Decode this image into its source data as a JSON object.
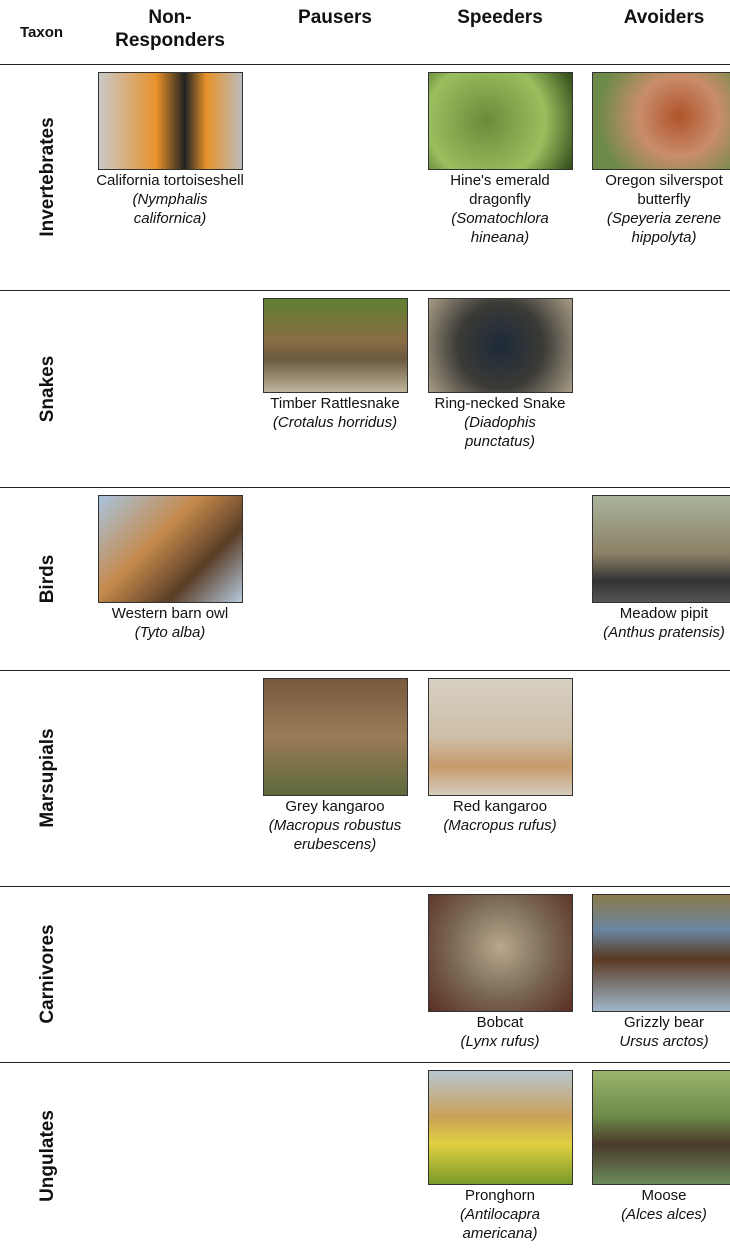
{
  "header": {
    "taxon": "Taxon",
    "columns": [
      "Non-Responders",
      "Pausers",
      "Speeders",
      "Avoiders"
    ]
  },
  "rows": [
    {
      "taxon": "Invertebrates",
      "cells": [
        {
          "common": "California tortoiseshell",
          "scientific": "(Nymphalis californica)"
        },
        null,
        {
          "common": "Hine's emerald dragonfly",
          "scientific": "(Somatochlora hineana)"
        },
        {
          "common": "Oregon silverspot butterfly",
          "scientific": "(Speyeria zerene hippolyta)"
        }
      ]
    },
    {
      "taxon": "Snakes",
      "cells": [
        null,
        {
          "common": "Timber Rattlesnake",
          "scientific": "(Crotalus horridus)"
        },
        {
          "common": "Ring-necked Snake",
          "scientific": "(Diadophis punctatus)"
        },
        null
      ]
    },
    {
      "taxon": "Birds",
      "cells": [
        {
          "common": "Western barn owl",
          "scientific": "(Tyto alba)"
        },
        null,
        null,
        {
          "common": "Meadow pipit",
          "scientific": "(Anthus pratensis)"
        }
      ]
    },
    {
      "taxon": "Marsupials",
      "cells": [
        null,
        {
          "common": "Grey kangaroo",
          "scientific": "(Macropus robustus erubescens)"
        },
        {
          "common": "Red kangaroo",
          "scientific": "(Macropus rufus)"
        },
        null
      ]
    },
    {
      "taxon": "Carnivores",
      "cells": [
        null,
        null,
        {
          "common": "Bobcat",
          "scientific": "(Lynx rufus)"
        },
        {
          "common": "Grizzly bear",
          "scientific": "Ursus arctos)"
        }
      ]
    },
    {
      "taxon": "Ungulates",
      "cells": [
        null,
        null,
        {
          "common": "Pronghorn",
          "scientific": "(Antilocapra americana)"
        },
        {
          "common": "Moose",
          "scientific": "(Alces alces)"
        }
      ]
    }
  ]
}
